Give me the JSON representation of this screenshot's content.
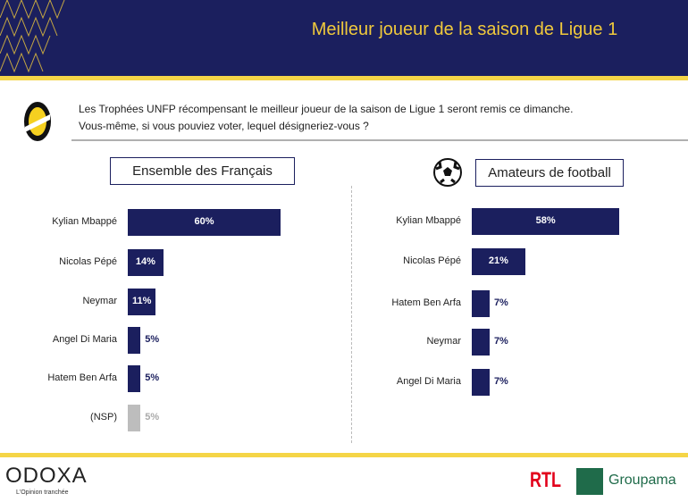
{
  "header": {
    "title": "Meilleur joueur de la saison de Ligue 1"
  },
  "question": {
    "line1": "Les Trophées UNFP récompensant le meilleur joueur de la saison de Ligue 1 seront remis ce dimanche.",
    "line2": "Vous-même, si vous pouviez voter, lequel désigneriez-vous ?"
  },
  "colors": {
    "navy": "#1b1f5e",
    "yellow": "#f5d547",
    "nsp": "#bdbdbd"
  },
  "chart_data": [
    {
      "type": "bar",
      "title": "Ensemble des Français",
      "unit": "%",
      "categories": [
        "Kylian Mbappé",
        "Nicolas Pépé",
        "Neymar",
        "Angel Di Maria",
        "Hatem Ben Arfa",
        "(NSP)"
      ],
      "values": [
        60,
        14,
        11,
        5,
        5,
        5
      ],
      "labels": [
        "60%",
        "14%",
        "11%",
        "5%",
        "5%",
        "5%"
      ]
    },
    {
      "type": "bar",
      "title": "Amateurs de football",
      "unit": "%",
      "categories": [
        "Kylian Mbappé",
        "Nicolas Pépé",
        "Hatem Ben Arfa",
        "Neymar",
        "Angel Di Maria"
      ],
      "values": [
        58,
        21,
        7,
        7,
        7
      ],
      "labels": [
        "58%",
        "21%",
        "7%",
        "7%",
        "7%"
      ]
    }
  ],
  "footer": {
    "brand": "ODOXA",
    "tagline": "L'Opinion tranchée",
    "rtl": "RTL",
    "groupama": "Groupama"
  }
}
